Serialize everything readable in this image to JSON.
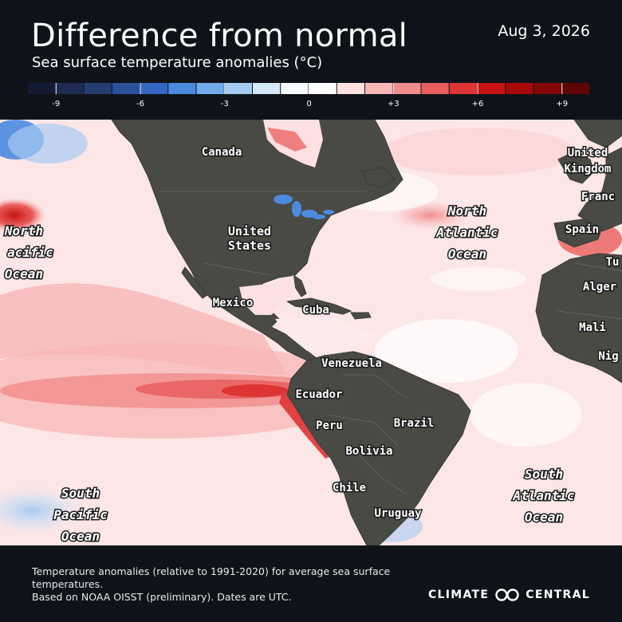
{
  "header": {
    "title": "Difference from normal",
    "subtitle": "Sea surface temperature anomalies (°C)",
    "date": "Aug 3, 2026"
  },
  "legend": {
    "ticks": [
      {
        "value": -9,
        "label": "-9"
      },
      {
        "value": -6,
        "label": "-6"
      },
      {
        "value": -3,
        "label": "-3"
      },
      {
        "value": 0,
        "label": "0"
      },
      {
        "value": 3,
        "label": "+3"
      },
      {
        "value": 6,
        "label": "+6"
      },
      {
        "value": 9,
        "label": "+9"
      }
    ],
    "min": -10,
    "max": 10,
    "colors": [
      "#141a33",
      "#1d2a52",
      "#253c72",
      "#2c509a",
      "#3568c4",
      "#4a8be0",
      "#73aaec",
      "#a6cbf2",
      "#d5e8fa",
      "#f7fbff",
      "#ffffff",
      "#fde1e1",
      "#f8b7b7",
      "#f18c8c",
      "#e85e5e",
      "#dd3434",
      "#c81414",
      "#a80808",
      "#850707",
      "#5e0606"
    ]
  },
  "map": {
    "labels": {
      "canada": "Canada",
      "united_kingdom_1": "United",
      "united_kingdom_2": "Kingdom",
      "france": "Franc",
      "north_pacific_1": "North",
      "north_pacific_2": "acific",
      "north_pacific_3": "Ocean",
      "united_states_1": "United",
      "united_states_2": "States",
      "north_atlantic_1": "North",
      "north_atlantic_2": "Atlantic",
      "north_atlantic_3": "Ocean",
      "spain": "Spain",
      "tunisia": "Tu",
      "algeria": "Alger",
      "mexico": "Mexico",
      "cuba": "Cuba",
      "mali": "Mali",
      "niger": "Nig",
      "venezuela": "Venezuela",
      "ecuador": "Ecuador",
      "peru": "Peru",
      "brazil": "Brazil",
      "bolivia": "Bolivia",
      "chile": "Chile",
      "uruguay": "Uruguay",
      "south_pacific_1": "South",
      "south_pacific_2": "Pacific",
      "south_pacific_3": "Ocean",
      "south_atlantic_1": "South",
      "south_atlantic_2": "Atlantic",
      "south_atlantic_3": "Ocean"
    }
  },
  "footer": {
    "note_line1": "Temperature anomalies (relative to 1991-2020) for average sea surface temperatures.",
    "note_line2": "Based on NOAA OISST (preliminary). Dates are UTC.",
    "brand_left": "CLIMATE",
    "brand_right": "CENTRAL"
  },
  "colors": {
    "background": "#0f1319",
    "land": "#4a4a45",
    "ocean_neutral": "#fde6e6"
  }
}
